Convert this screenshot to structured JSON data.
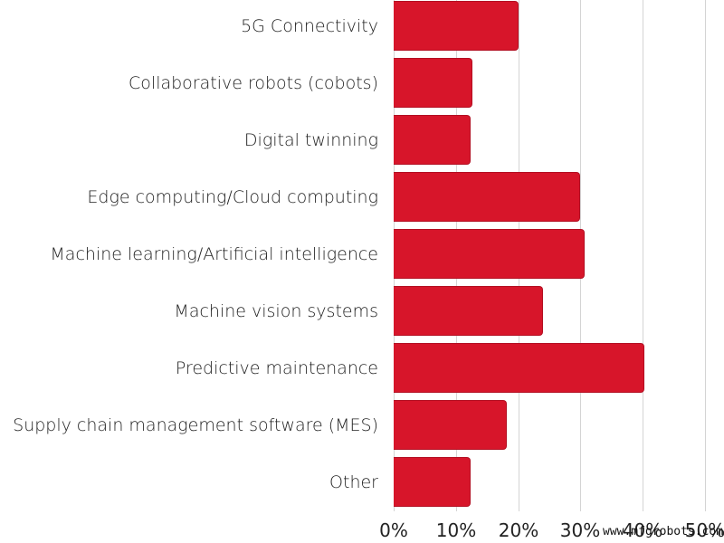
{
  "chart_data": {
    "type": "bar",
    "orientation": "horizontal",
    "title": "",
    "xlabel": "",
    "ylabel": "",
    "categories": [
      "5G Connectivity",
      "Collaborative robots (cobots)",
      "Digital twinning",
      "Edge computing/Cloud computing",
      "Machine learning/Artificial intelligence",
      "Machine vision systems",
      "Predictive maintenance",
      "Supply chain management software (MES)",
      "Other"
    ],
    "values": [
      20,
      12.6,
      12.3,
      30,
      30.6,
      24,
      40.2,
      18.2,
      12.3
    ],
    "unit": "%",
    "xlim": [
      0,
      50
    ],
    "x_ticks": [
      "0%",
      "10%",
      "20%",
      "30%",
      "40%",
      "50%"
    ],
    "grid": true,
    "legend": null,
    "bar_color": "#d7152a"
  },
  "watermark": "www.mfgrobots.com"
}
